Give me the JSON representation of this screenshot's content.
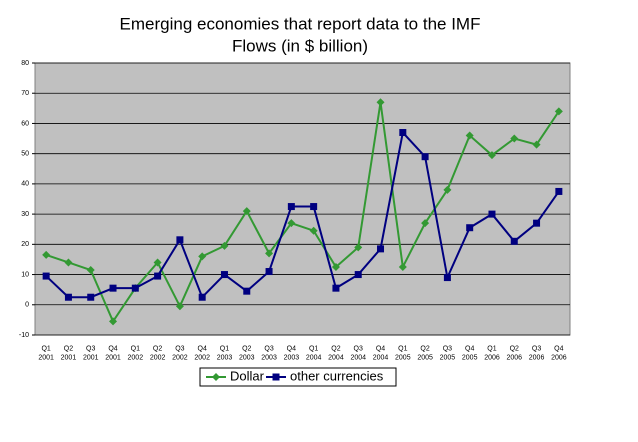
{
  "chart_data": {
    "type": "line",
    "title": [
      "Emerging economies that report data to the IMF",
      "Flows (in $ billion)"
    ],
    "categories": [
      [
        "Q1",
        "2001"
      ],
      [
        "Q2",
        "2001"
      ],
      [
        "Q3",
        "2001"
      ],
      [
        "Q4",
        "2001"
      ],
      [
        "Q1",
        "2002"
      ],
      [
        "Q2",
        "2002"
      ],
      [
        "Q3",
        "2002"
      ],
      [
        "Q4",
        "2002"
      ],
      [
        "Q1",
        "2003"
      ],
      [
        "Q2",
        "2003"
      ],
      [
        "Q3",
        "2003"
      ],
      [
        "Q4",
        "2003"
      ],
      [
        "Q1",
        "2004"
      ],
      [
        "Q2",
        "2004"
      ],
      [
        "Q3",
        "2004"
      ],
      [
        "Q4",
        "2004"
      ],
      [
        "Q1",
        "2005"
      ],
      [
        "Q2",
        "2005"
      ],
      [
        "Q3",
        "2005"
      ],
      [
        "Q4",
        "2005"
      ],
      [
        "Q1",
        "2006"
      ],
      [
        "Q2",
        "2006"
      ],
      [
        "Q3",
        "2006"
      ],
      [
        "Q4",
        "2006"
      ]
    ],
    "series": [
      {
        "name": "Dollar",
        "color": "#339933",
        "marker": "diamond",
        "values": [
          16.5,
          14,
          11.5,
          -5.5,
          5.5,
          14,
          -0.5,
          16,
          19.5,
          31,
          17,
          27,
          24.5,
          12.5,
          19,
          67,
          12.5,
          27,
          38,
          56,
          49.5,
          55,
          53,
          64
        ]
      },
      {
        "name": "other currencies",
        "color": "#000080",
        "marker": "square",
        "values": [
          9.5,
          2.5,
          2.5,
          5.5,
          5.5,
          9.5,
          21.5,
          2.5,
          10,
          4.5,
          11,
          32.5,
          32.5,
          5.5,
          10,
          18.5,
          57,
          49,
          9,
          25.5,
          30,
          21,
          27,
          37.5
        ]
      }
    ],
    "ylim": [
      -10,
      80
    ],
    "yticks": [
      -10,
      0,
      10,
      20,
      30,
      40,
      50,
      60,
      70,
      80
    ],
    "grid": true
  }
}
